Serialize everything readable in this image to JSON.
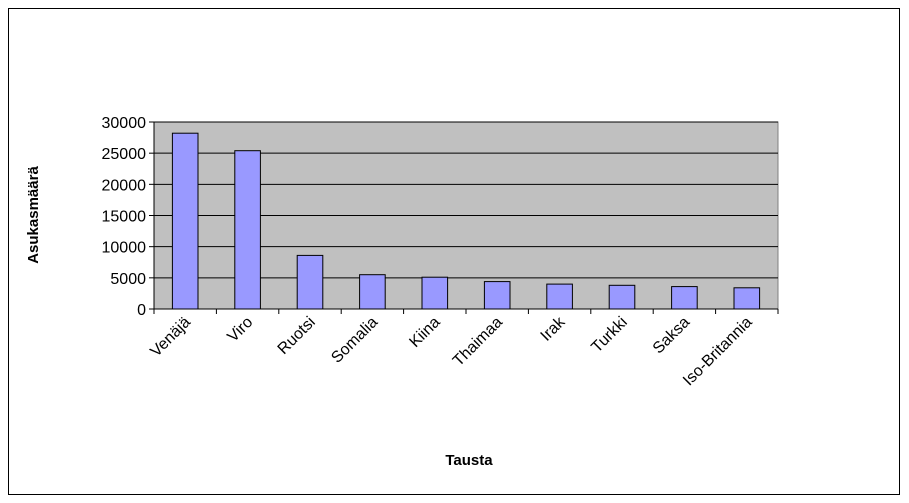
{
  "chart_data": {
    "type": "bar",
    "title": "",
    "xlabel": "Tausta",
    "ylabel": "Asukasmäärä",
    "categories": [
      "Venäjä",
      "Viro",
      "Ruotsi",
      "Somalia",
      "Kiina",
      "Thaimaa",
      "Irak",
      "Turkki",
      "Saksa",
      "Iso-Britannia"
    ],
    "values": [
      28200,
      25400,
      8600,
      5500,
      5100,
      4400,
      4000,
      3800,
      3600,
      3400
    ],
    "ylim": [
      0,
      30000
    ],
    "yticks": [
      "0",
      "5000",
      "10000",
      "15000",
      "20000",
      "25000",
      "30000"
    ],
    "grid": true,
    "legend": "none",
    "colors": {
      "bar_fill": "#9999ff",
      "bar_stroke": "#000000",
      "plot_background": "#c0c0c0",
      "gridline": "#000000"
    }
  }
}
